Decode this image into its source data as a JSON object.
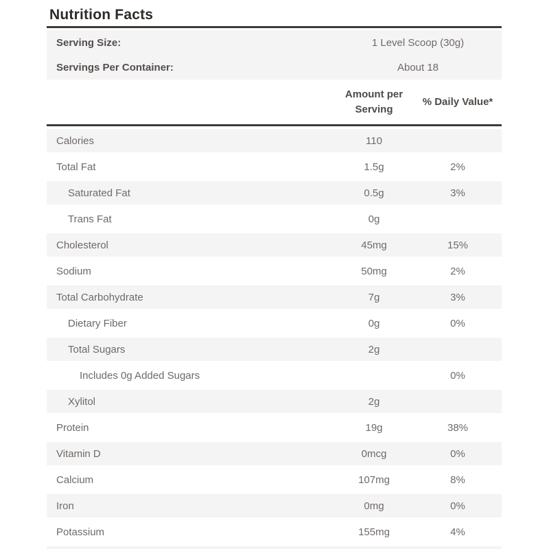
{
  "title": "Nutrition Facts",
  "serving_info": [
    {
      "label": "Serving Size:",
      "value": "1 Level Scoop (30g)"
    },
    {
      "label": "Servings Per Container:",
      "value": "About 18"
    }
  ],
  "columns": {
    "amount": "Amount per Serving",
    "daily_value": "% Daily Value*"
  },
  "rows": [
    {
      "label": "Calories",
      "amount": "110",
      "dv": "",
      "indent": 0
    },
    {
      "label": "Total Fat",
      "amount": "1.5g",
      "dv": "2%",
      "indent": 0
    },
    {
      "label": "Saturated Fat",
      "amount": "0.5g",
      "dv": "3%",
      "indent": 1
    },
    {
      "label": "Trans Fat",
      "amount": "0g",
      "dv": "",
      "indent": 1
    },
    {
      "label": "Cholesterol",
      "amount": "45mg",
      "dv": "15%",
      "indent": 0
    },
    {
      "label": "Sodium",
      "amount": "50mg",
      "dv": "2%",
      "indent": 0
    },
    {
      "label": "Total Carbohydrate",
      "amount": "7g",
      "dv": "3%",
      "indent": 0
    },
    {
      "label": "Dietary Fiber",
      "amount": "0g",
      "dv": "0%",
      "indent": 1
    },
    {
      "label": "Total Sugars",
      "amount": "2g",
      "dv": "",
      "indent": 1
    },
    {
      "label": "Includes 0g Added Sugars",
      "amount": "",
      "dv": "0%",
      "indent": 2
    },
    {
      "label": "Xylitol",
      "amount": "2g",
      "dv": "",
      "indent": 1
    },
    {
      "label": "Protein",
      "amount": "19g",
      "dv": "38%",
      "indent": 0
    },
    {
      "label": "Vitamin D",
      "amount": "0mcg",
      "dv": "0%",
      "indent": 0
    },
    {
      "label": "Calcium",
      "amount": "107mg",
      "dv": "8%",
      "indent": 0
    },
    {
      "label": "Iron",
      "amount": "0mg",
      "dv": "0%",
      "indent": 0
    },
    {
      "label": "Potassium",
      "amount": "155mg",
      "dv": "4%",
      "indent": 0
    }
  ],
  "colors": {
    "title_text": "#2e2a26",
    "rule": "#3e3935",
    "bold_label_text": "#534e4b",
    "row_text": "#6e6966",
    "stripe_background": "#f5f4f4",
    "page_background": "#ffffff"
  }
}
